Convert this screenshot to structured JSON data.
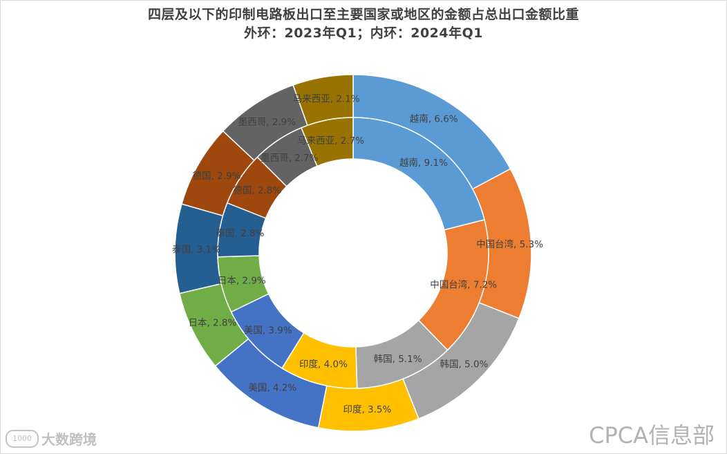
{
  "title_line1": "四层及以下的印制电路板出口至主要国家或地区的金额占总出口金额比重",
  "title_line2": "外环：2023年Q1；内环：2024年Q1",
  "watermark_left_icon": "1000",
  "watermark_left": "大数跨境",
  "watermark_right": "CPCA信息部",
  "chart_data": {
    "type": "doughnut",
    "title": "四层及以下的印制电路板出口至主要国家或地区的金额占总出口金额比重",
    "subtitle": "外环：2023年Q1；内环：2024年Q1",
    "legend": "none",
    "categories": [
      "越南",
      "中国台湾",
      "韩国",
      "印度",
      "美国",
      "日本",
      "泰国",
      "德国",
      "墨西哥",
      "马来西亚"
    ],
    "colors": [
      "#5b9bd5",
      "#ed7d31",
      "#a5a5a5",
      "#ffc000",
      "#4472c4",
      "#70ad47",
      "#255e91",
      "#9e480e",
      "#636363",
      "#997300"
    ],
    "series": [
      {
        "name": "外环：2023年Q1",
        "ring": "outer",
        "values": [
          6.6,
          5.3,
          5.0,
          3.5,
          4.2,
          2.8,
          3.1,
          2.9,
          2.9,
          2.1
        ]
      },
      {
        "name": "内环：2024年Q1",
        "ring": "inner",
        "values": [
          9.1,
          7.2,
          5.1,
          4.0,
          3.9,
          2.9,
          2.8,
          2.8,
          2.7,
          2.7
        ]
      }
    ]
  }
}
